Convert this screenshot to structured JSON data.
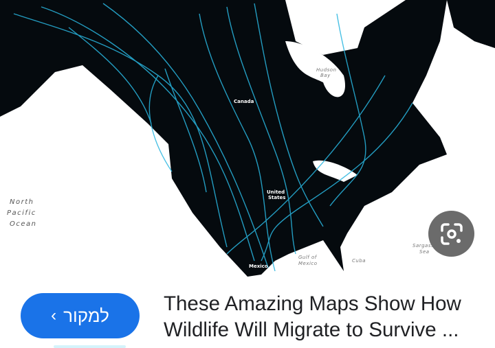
{
  "image": {
    "labels": {
      "ocean": [
        "North",
        "Pacific",
        "Ocean"
      ],
      "hudson": [
        "Hudson",
        "Bay"
      ],
      "canada": "Canada",
      "us": [
        "United",
        "States"
      ],
      "mexico": "Mexico",
      "gulf": [
        "Gulf of",
        "Mexico"
      ],
      "sargasso": [
        "Sargasso",
        "Sea"
      ],
      "cuba": "Cuba"
    },
    "colors": {
      "land": "#050a0e",
      "flow": "#29b6e0"
    }
  },
  "lens_button": {
    "icon": "google-lens-icon"
  },
  "source_button": {
    "label": "למקור",
    "icon": "chevron-left-icon",
    "color": "#1a73e8"
  },
  "result": {
    "title_line1": "These Amazing Maps Show How",
    "title_line2": "Wildlife Will Migrate to Survive ..."
  }
}
